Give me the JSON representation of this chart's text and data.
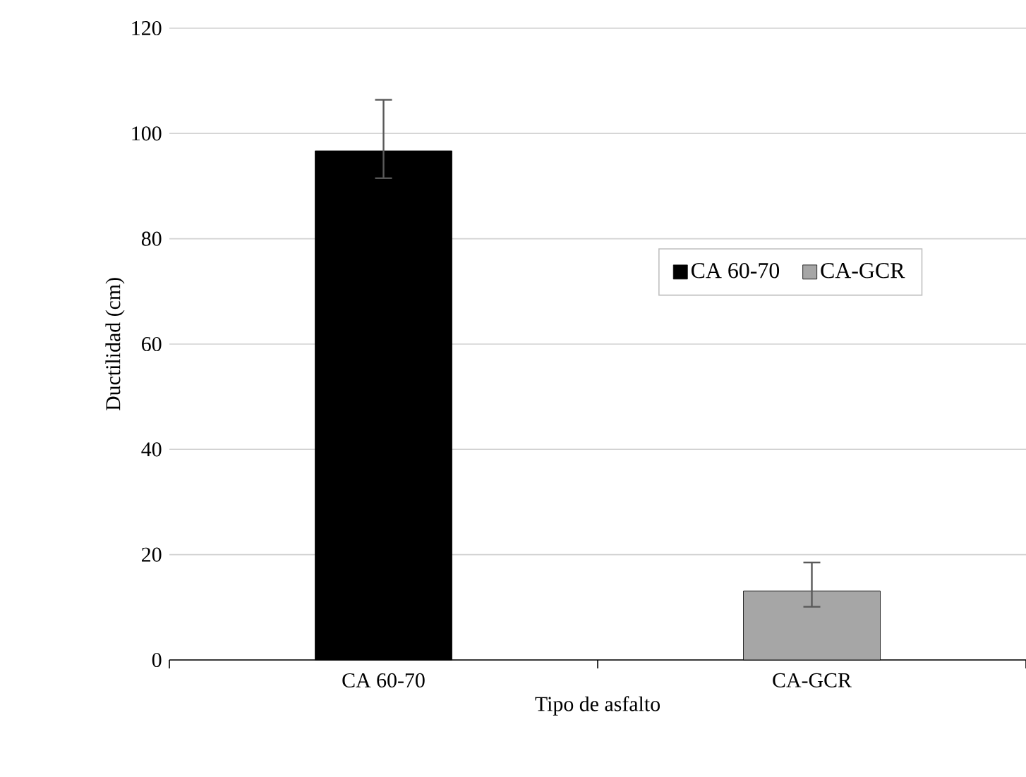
{
  "chart_data": {
    "type": "bar",
    "xlabel": "Tipo de asfalto",
    "ylabel": "Ductilidad (cm)",
    "categories": [
      "CA 60-70",
      "CA-GCR"
    ],
    "series": [
      {
        "name": "CA 60-70",
        "color": "#000000",
        "values": [
          96.7,
          null
        ],
        "errors": [
          [
            91.5,
            106.4
          ],
          null
        ]
      },
      {
        "name": "CA-GCR",
        "color": "#a6a6a6",
        "values": [
          null,
          13.1
        ],
        "errors": [
          null,
          [
            10.1,
            18.5
          ]
        ]
      }
    ],
    "ylim": [
      0,
      120
    ],
    "yticks": [
      0,
      20,
      40,
      60,
      80,
      100,
      120
    ],
    "grid": "y",
    "legend": "right"
  }
}
